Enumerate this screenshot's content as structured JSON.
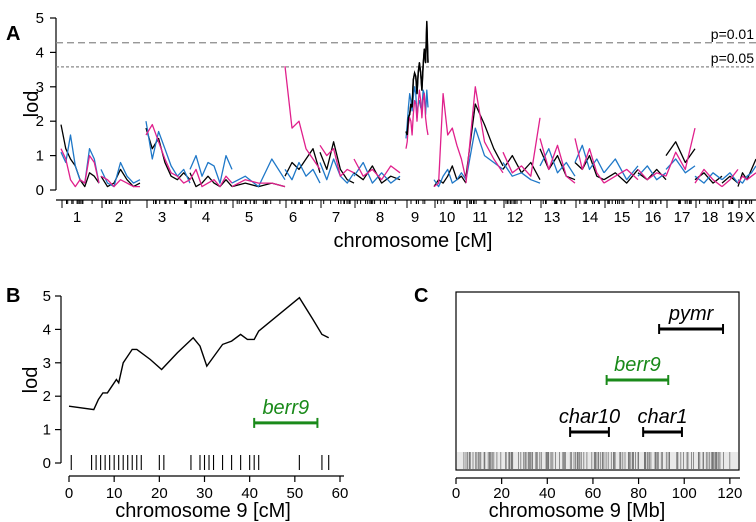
{
  "colors": {
    "series1": "#000000",
    "series2": "#1f78c8",
    "series3": "#e0208c",
    "berr9": "#1a8a1a",
    "threshold": "#8a8a8a",
    "mb_markers": "#777777"
  },
  "panels": {
    "a": "A",
    "b": "B",
    "c": "C"
  },
  "chart_data": [
    {
      "panel": "A",
      "type": "line",
      "ylabel": "lod",
      "xlabel": "chromosome [cM]",
      "ylim": [
        0,
        5
      ],
      "yticks": [
        "0",
        "1",
        "2",
        "3",
        "4",
        "5"
      ],
      "chromosomes": [
        "1",
        "2",
        "3",
        "4",
        "5",
        "6",
        "7",
        "8",
        "9",
        "10",
        "11",
        "12",
        "13",
        "14",
        "15",
        "16",
        "17",
        "18",
        "19",
        "X"
      ],
      "thresholds": [
        {
          "label": "p=0.01",
          "value": 4.28
        },
        {
          "label": "p=0.05",
          "value": 3.58
        }
      ],
      "series_colors": [
        "#000000",
        "#1f78c8",
        "#e0208c"
      ],
      "segments": {
        "1": [
          [
            1.9,
            1.2,
            0.9,
            0.7,
            0.3,
            0.1,
            0.5,
            0.4,
            0.2
          ],
          [
            1.1,
            0.8,
            1.6,
            0.7,
            0.3,
            0.2,
            1.2,
            0.9,
            0.2
          ],
          [
            1.2,
            0.9,
            0.3,
            0.1,
            0.3,
            0.2,
            1.0,
            0.8,
            0.2
          ]
        ],
        "2": [
          [
            0.4,
            0.1,
            0.2,
            0.6,
            0.3,
            0.1,
            0.2
          ],
          [
            0.6,
            0.2,
            0.1,
            0.8,
            0.4,
            0.2,
            0.3
          ],
          [
            0.4,
            0.3,
            0.1,
            0.3,
            0.2,
            0.1,
            0.1
          ]
        ],
        "3": [
          [
            1.8,
            1.2,
            1.5,
            0.8,
            0.4,
            0.3,
            0.5,
            0.3
          ],
          [
            2.0,
            0.9,
            1.7,
            1.2,
            0.7,
            0.4,
            0.6,
            0.2
          ],
          [
            1.6,
            1.9,
            1.4,
            0.9,
            0.5,
            0.4,
            0.2,
            0.3
          ]
        ],
        "4": [
          [
            0.5,
            0.1,
            0.2,
            0.4,
            0.2,
            0.1,
            0.3,
            0.1
          ],
          [
            0.6,
            1.0,
            0.4,
            0.8,
            0.7,
            0.2,
            1.0,
            0.6
          ],
          [
            0.3,
            0.6,
            0.1,
            0.2,
            0.3,
            0.1,
            0.4,
            0.2
          ]
        ],
        "5": [
          [
            0.1,
            0.2,
            0.1,
            0.2,
            0.1
          ],
          [
            0.2,
            0.4,
            0.1,
            0.9,
            0.3
          ],
          [
            0.1,
            0.3,
            0.2,
            0.2,
            0.1
          ]
        ],
        "6": [
          [
            0.4,
            0.8,
            0.6,
            0.9,
            1.2,
            0.5
          ],
          [
            0.6,
            0.3,
            0.8,
            0.4,
            0.6,
            0.2
          ],
          [
            3.6,
            1.8,
            2.0,
            1.2,
            0.9,
            0.6
          ]
        ],
        "7": [
          [
            1.1,
            0.6,
            1.4,
            0.6,
            0.3,
            0.2
          ],
          [
            0.8,
            0.3,
            0.9,
            0.4,
            0.2,
            0.5
          ],
          [
            1.3,
            1.0,
            1.2,
            0.4,
            0.6,
            0.5
          ]
        ],
        "8": [
          [
            0.5,
            0.3,
            0.7,
            0.2,
            0.4,
            0.3
          ],
          [
            0.4,
            0.8,
            0.2,
            0.5,
            0.2,
            0.4
          ],
          [
            0.9,
            0.4,
            0.6,
            0.3,
            0.7,
            0.5
          ]
        ],
        "9": [
          [
            1.7,
            1.6,
            2.1,
            2.2,
            2.5,
            2.4,
            3.2,
            3.4,
            3.3,
            2.8,
            3.4,
            3.7,
            3.4,
            2.9,
            3.6,
            4.1,
            3.7,
            4.9,
            3.7
          ],
          [
            1.5,
            1.9,
            2.4,
            2.8,
            2.6,
            2.3,
            2.7,
            3.0,
            2.8,
            2.1,
            2.5,
            2.6,
            2.4,
            2.3,
            2.9,
            2.8,
            2.2,
            2.9,
            2.4
          ],
          [
            1.2,
            1.4,
            1.9,
            2.1,
            2.0,
            1.6,
            2.2,
            2.6,
            2.5,
            2.0,
            2.5,
            2.9,
            2.6,
            2.1,
            2.6,
            2.8,
            2.1,
            1.8,
            1.6
          ]
        ],
        "10": [
          [
            0.1,
            0.3,
            0.2,
            0.4,
            0.7,
            0.3,
            0.4,
            0.2
          ],
          [
            0.3,
            0.1,
            0.4,
            0.6,
            0.2,
            0.3,
            0.5,
            0.3
          ],
          [
            0.1,
            0.2,
            2.8,
            1.6,
            1.8,
            1.3,
            0.9,
            0.3
          ]
        ],
        "11": [
          [
            0.4,
            2.5,
            1.9,
            1.2,
            0.7
          ],
          [
            0.3,
            1.8,
            1.0,
            0.8,
            0.6
          ],
          [
            0.2,
            3.0,
            1.4,
            0.9,
            0.5
          ]
        ],
        "12": [
          [
            0.6,
            1.0,
            0.5,
            0.8,
            0.3
          ],
          [
            0.8,
            0.4,
            0.5,
            0.3,
            0.2
          ],
          [
            1.1,
            0.5,
            0.7,
            0.4,
            2.1
          ]
        ],
        "13": [
          [
            1.2,
            0.6,
            1.0,
            0.4,
            0.3
          ],
          [
            0.7,
            1.2,
            0.5,
            0.8,
            0.4
          ],
          [
            1.5,
            0.6,
            1.3,
            0.4,
            0.2
          ]
        ],
        "14": [
          [
            0.8,
            0.6,
            1.0,
            0.4,
            0.3
          ],
          [
            0.8,
            1.3,
            0.6,
            0.9,
            0.5
          ],
          [
            1.5,
            0.6,
            1.2,
            0.5,
            0.2
          ]
        ],
        "15": [
          [
            0.3,
            0.5,
            0.2,
            0.6
          ],
          [
            0.5,
            0.9,
            0.3,
            0.7
          ],
          [
            0.2,
            0.4,
            0.6,
            0.3
          ]
        ],
        "16": [
          [
            0.5,
            0.3,
            0.6,
            0.3
          ],
          [
            0.4,
            0.7,
            0.3,
            0.5
          ],
          [
            0.6,
            0.3,
            0.5,
            0.4
          ]
        ],
        "17": [
          [
            1.0,
            1.4,
            0.8,
            1.2
          ],
          [
            0.6,
            0.9,
            0.5,
            0.7
          ],
          [
            0.4,
            1.1,
            0.6,
            1.8
          ]
        ],
        "18": [
          [
            0.3,
            0.5,
            0.2,
            0.4
          ],
          [
            0.4,
            0.2,
            0.5,
            0.3
          ],
          [
            0.2,
            0.6,
            0.3,
            0.1
          ]
        ],
        "19": [
          [
            0.2,
            0.4,
            0.2
          ],
          [
            0.3,
            0.5,
            0.2
          ],
          [
            0.1,
            0.3,
            0.6
          ]
        ],
        "X": [
          [
            0.1,
            0.5,
            0.3,
            0.6,
            0.9
          ],
          [
            0.3,
            0.2,
            0.4,
            0.5,
            0.7
          ],
          [
            0.2,
            0.4,
            0.3,
            0.4,
            0.5
          ]
        ]
      }
    },
    {
      "panel": "B",
      "type": "line",
      "ylabel": "lod",
      "xlabel": "chromosome 9 [cM]",
      "xlim": [
        0,
        60
      ],
      "ylim": [
        0,
        5
      ],
      "xticks": [
        "0",
        "10",
        "20",
        "30",
        "40",
        "50",
        "60"
      ],
      "yticks": [
        "0",
        "1",
        "2",
        "3",
        "4",
        "5"
      ],
      "x": [
        0,
        5.5,
        6.5,
        7.5,
        8.5,
        9.5,
        10.5,
        11,
        12,
        13,
        14,
        15,
        18,
        20.5,
        24,
        27.5,
        29,
        30.5,
        34,
        36,
        38,
        39.5,
        41,
        42,
        51,
        54,
        56,
        57.5
      ],
      "y": [
        1.7,
        1.6,
        1.9,
        2.1,
        2.1,
        2.3,
        2.5,
        2.4,
        3.0,
        3.2,
        3.4,
        3.4,
        3.1,
        2.8,
        3.3,
        3.75,
        3.5,
        2.9,
        3.55,
        3.65,
        3.85,
        3.7,
        3.7,
        3.95,
        4.95,
        4.3,
        3.85,
        3.75
      ],
      "markers_cm": [
        0.5,
        5,
        6,
        7,
        8,
        9,
        10,
        11,
        12,
        13,
        14,
        15,
        16,
        20,
        21,
        27,
        29,
        30,
        31,
        32,
        34,
        36,
        38,
        40,
        41,
        42,
        51,
        56,
        57.5
      ],
      "annotation": {
        "label": "berr9",
        "start": 41,
        "end": 55,
        "level": 1.2
      }
    },
    {
      "panel": "C",
      "type": "interval",
      "xlabel": "chromosome 9 [Mb]",
      "xlim": [
        0,
        124
      ],
      "xticks": [
        "0",
        "20",
        "40",
        "60",
        "80",
        "100",
        "120"
      ],
      "genes": [
        {
          "label": "pymr",
          "start": 89,
          "end": 117
        },
        {
          "label": "berr9",
          "start": 66,
          "end": 93
        },
        {
          "label": "char10",
          "start": 50,
          "end": 67
        },
        {
          "label": "char1",
          "start": 82,
          "end": 99
        }
      ]
    }
  ]
}
